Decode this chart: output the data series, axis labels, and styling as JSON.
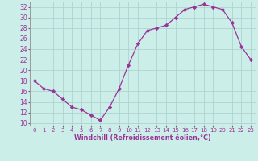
{
  "x": [
    0,
    1,
    2,
    3,
    4,
    5,
    6,
    7,
    8,
    9,
    10,
    11,
    12,
    13,
    14,
    15,
    16,
    17,
    18,
    19,
    20,
    21,
    22,
    23
  ],
  "y": [
    18,
    16.5,
    16,
    14.5,
    13,
    12.5,
    11.5,
    10.5,
    13,
    16.5,
    21,
    25,
    27.5,
    28,
    28.5,
    30,
    31.5,
    32,
    32.5,
    32,
    31.5,
    29,
    24.5,
    22
  ],
  "line_color": "#993399",
  "marker": "D",
  "marker_size": 2.2,
  "bg_color": "#cceee8",
  "grid_color": "#aacccc",
  "xlabel": "Windchill (Refroidissement éolien,°C)",
  "xlim": [
    -0.5,
    23.5
  ],
  "ylim": [
    9.5,
    33.0
  ],
  "yticks": [
    10,
    12,
    14,
    16,
    18,
    20,
    22,
    24,
    26,
    28,
    30,
    32
  ],
  "xticks": [
    0,
    1,
    2,
    3,
    4,
    5,
    6,
    7,
    8,
    9,
    10,
    11,
    12,
    13,
    14,
    15,
    16,
    17,
    18,
    19,
    20,
    21,
    22,
    23
  ],
  "tick_color": "#993399",
  "label_color": "#993399",
  "spine_color": "#999999",
  "xlabel_fontsize": 5.8,
  "ytick_fontsize": 5.5,
  "xtick_fontsize": 5.0
}
